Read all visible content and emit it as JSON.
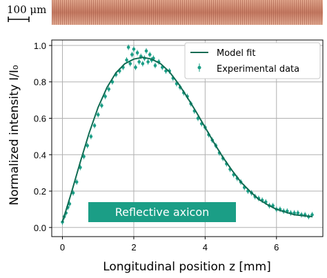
{
  "scale_bar": {
    "label": "100 μm"
  },
  "banner": {
    "label": "Reflective axicon",
    "color": "#1b9e86"
  },
  "chart_data": {
    "type": "scatter",
    "xlabel": "Longitudinal position z [mm]",
    "ylabel": "Normalized intensity I/I₀",
    "xlim": [
      -0.3,
      7.3
    ],
    "ylim": [
      -0.05,
      1.03
    ],
    "xticks": [
      0,
      2,
      4,
      6
    ],
    "yticks": [
      0.0,
      0.2,
      0.4,
      0.6,
      0.8,
      1.0
    ],
    "xtick_labels": [
      "0",
      "2",
      "4",
      "6"
    ],
    "ytick_labels": [
      "0.0",
      "0.2",
      "0.4",
      "0.6",
      "0.8",
      "1.0"
    ],
    "grid": true,
    "legend_position": "top-right",
    "colors": {
      "model": "#0f6b52",
      "experimental": "#1b9e86"
    },
    "series": [
      {
        "name": "Model fit",
        "type": "line",
        "x": [
          0.0,
          0.25,
          0.5,
          0.75,
          1.0,
          1.25,
          1.5,
          1.75,
          2.0,
          2.25,
          2.5,
          2.75,
          3.0,
          3.25,
          3.5,
          3.75,
          4.0,
          4.25,
          4.5,
          4.75,
          5.0,
          5.25,
          5.5,
          5.75,
          6.0,
          6.25,
          6.5,
          6.75,
          7.0
        ],
        "y": [
          0.03,
          0.19,
          0.36,
          0.52,
          0.66,
          0.77,
          0.85,
          0.9,
          0.925,
          0.935,
          0.925,
          0.9,
          0.855,
          0.79,
          0.715,
          0.635,
          0.55,
          0.465,
          0.385,
          0.315,
          0.25,
          0.2,
          0.155,
          0.125,
          0.1,
          0.085,
          0.07,
          0.065,
          0.06
        ]
      },
      {
        "name": "Experimental data",
        "type": "scatter",
        "error_bars": true,
        "x": [
          0.0,
          0.05,
          0.1,
          0.15,
          0.2,
          0.3,
          0.4,
          0.5,
          0.6,
          0.7,
          0.8,
          0.9,
          1.0,
          1.1,
          1.2,
          1.3,
          1.4,
          1.5,
          1.6,
          1.7,
          1.8,
          1.85,
          1.9,
          1.95,
          2.0,
          2.05,
          2.1,
          2.15,
          2.2,
          2.25,
          2.3,
          2.35,
          2.4,
          2.45,
          2.5,
          2.55,
          2.6,
          2.7,
          2.8,
          2.9,
          3.0,
          3.1,
          3.2,
          3.3,
          3.4,
          3.5,
          3.6,
          3.7,
          3.8,
          3.9,
          4.0,
          4.1,
          4.2,
          4.3,
          4.4,
          4.5,
          4.6,
          4.7,
          4.8,
          4.9,
          5.0,
          5.1,
          5.2,
          5.3,
          5.4,
          5.5,
          5.6,
          5.7,
          5.8,
          5.9,
          6.0,
          6.1,
          6.2,
          6.3,
          6.4,
          6.5,
          6.6,
          6.7,
          6.8,
          6.9,
          7.0
        ],
        "y": [
          0.03,
          0.06,
          0.08,
          0.11,
          0.13,
          0.19,
          0.25,
          0.33,
          0.39,
          0.45,
          0.5,
          0.56,
          0.62,
          0.67,
          0.72,
          0.76,
          0.8,
          0.84,
          0.86,
          0.88,
          0.92,
          0.99,
          0.9,
          0.95,
          0.98,
          0.88,
          0.96,
          0.91,
          0.94,
          0.9,
          0.93,
          0.97,
          0.91,
          0.95,
          0.92,
          0.93,
          0.89,
          0.91,
          0.88,
          0.86,
          0.86,
          0.82,
          0.79,
          0.77,
          0.74,
          0.72,
          0.68,
          0.64,
          0.6,
          0.57,
          0.55,
          0.51,
          0.48,
          0.45,
          0.41,
          0.38,
          0.35,
          0.32,
          0.29,
          0.27,
          0.25,
          0.22,
          0.2,
          0.19,
          0.17,
          0.16,
          0.15,
          0.14,
          0.12,
          0.12,
          0.1,
          0.1,
          0.09,
          0.09,
          0.08,
          0.08,
          0.08,
          0.07,
          0.07,
          0.06,
          0.07
        ]
      }
    ]
  }
}
